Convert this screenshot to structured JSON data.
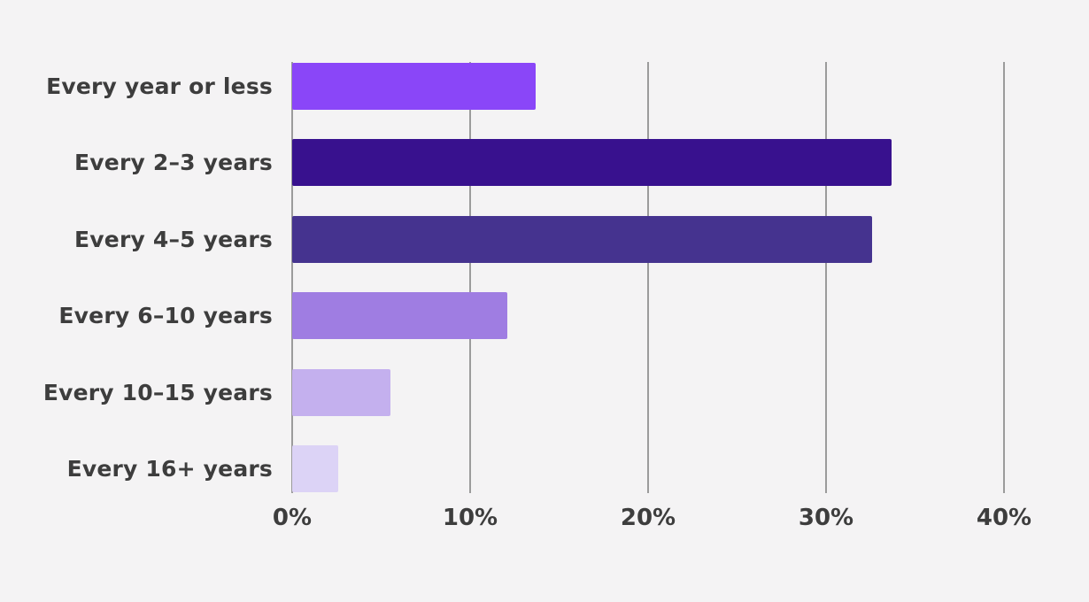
{
  "chart_data": {
    "type": "bar",
    "orientation": "horizontal",
    "title": "",
    "xlabel": "",
    "ylabel": "",
    "categories": [
      "Every year or less",
      "Every 2–3 years",
      "Every 4–5 years",
      "Every 6–10 years",
      "Every 10–15 years",
      "Every 16+ years"
    ],
    "values": [
      13.7,
      33.7,
      32.6,
      12.1,
      5.5,
      2.6
    ],
    "unit": "%",
    "bar_colors": [
      "#8a46f8",
      "#38118e",
      "#45338f",
      "#9f7de2",
      "#c4b0ee",
      "#dcd3f6"
    ],
    "x_ticks": [
      "0%",
      "10%",
      "20%",
      "30%",
      "40%"
    ],
    "x_tick_values": [
      0,
      10,
      20,
      30,
      40
    ],
    "xlim": [
      0,
      42
    ],
    "grid": "vertical",
    "legend": "none",
    "background_color": "#f4f3f4",
    "gridline_color": "#9b9b9b",
    "text_color": "#3d3d3d"
  }
}
